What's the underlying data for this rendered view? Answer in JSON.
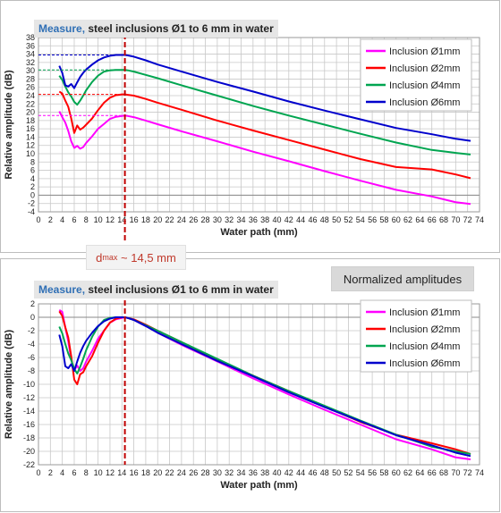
{
  "annotations": {
    "dmax_prefix": "d",
    "dmax_sub": "max",
    "dmax_suffix": "~ 14,5 mm",
    "normalized_label": "Normalized amplitudes"
  },
  "colors": {
    "series": [
      "#ff00ff",
      "#ff0000",
      "#00a550",
      "#0000cc"
    ],
    "marker": "#c00000",
    "grid": "#c8c8c8"
  },
  "chart_data": [
    {
      "type": "line",
      "title_lead": "Measure,",
      "title": "steel inclusions Ø1 to 6 mm in water",
      "xlabel": "Water path (mm)",
      "ylabel": "Relative amplitude (dB)",
      "xlim": [
        0,
        74
      ],
      "ylim": [
        -4,
        38
      ],
      "xticks": [
        0,
        2,
        4,
        6,
        8,
        10,
        12,
        14,
        16,
        18,
        20,
        22,
        24,
        26,
        28,
        30,
        32,
        34,
        36,
        38,
        40,
        42,
        44,
        46,
        48,
        50,
        52,
        54,
        56,
        58,
        60,
        62,
        64,
        66,
        68,
        70,
        72,
        74
      ],
      "yticks": [
        -4,
        -2,
        0,
        2,
        4,
        6,
        8,
        10,
        12,
        14,
        16,
        18,
        20,
        22,
        24,
        26,
        28,
        30,
        32,
        34,
        36,
        38
      ],
      "grid": true,
      "legend_position": "top-right",
      "marker_x": 14.5,
      "series": [
        {
          "name": "Inclusion Ø1mm",
          "peak": 19.2,
          "x": [
            3.5,
            4,
            4.5,
            5,
            5.5,
            6,
            6.5,
            7,
            7.5,
            8,
            9,
            10,
            11,
            12,
            13,
            14,
            14.5,
            15,
            16,
            18,
            20,
            24,
            30,
            36,
            42,
            48,
            54,
            60,
            66,
            70,
            72.5
          ],
          "y": [
            20.2,
            18.8,
            17.5,
            15.5,
            13,
            11.4,
            11.9,
            11.2,
            11.6,
            12.6,
            14.2,
            16,
            17.2,
            18.4,
            18.9,
            19.1,
            19.2,
            19.1,
            18.8,
            18,
            17.1,
            15.4,
            13,
            10.5,
            8.2,
            5.8,
            3.5,
            1.3,
            -0.3,
            -1.7,
            -2.1
          ]
        },
        {
          "name": "Inclusion Ø2mm",
          "peak": 24.3,
          "x": [
            3.5,
            4,
            4.5,
            5,
            5.5,
            6,
            6.5,
            7,
            7.5,
            8,
            9,
            10,
            11,
            12,
            13,
            14,
            14.5,
            15,
            16,
            18,
            20,
            24,
            30,
            36,
            42,
            48,
            54,
            60,
            66,
            70,
            72.5
          ],
          "y": [
            25,
            24.5,
            22.8,
            21.3,
            18.5,
            15,
            16.8,
            15.8,
            16.3,
            17,
            18.5,
            20.5,
            22.3,
            23.5,
            24.1,
            24.3,
            24.3,
            24.2,
            24,
            23.2,
            22.3,
            20.6,
            18,
            15.6,
            13.3,
            11,
            8.7,
            6.8,
            6.2,
            5,
            4.1
          ]
        },
        {
          "name": "Inclusion Ø4mm",
          "peak": 30.2,
          "x": [
            3.5,
            4,
            4.5,
            5,
            5.5,
            6,
            6.5,
            7,
            7.5,
            8,
            9,
            10,
            11,
            12,
            13,
            14,
            14.5,
            15,
            16,
            18,
            20,
            24,
            30,
            36,
            42,
            48,
            54,
            60,
            66,
            70,
            72.5
          ],
          "y": [
            28.8,
            27.8,
            26.2,
            24.8,
            23.8,
            22.5,
            21.8,
            22.8,
            24,
            25.3,
            27.3,
            28.8,
            29.8,
            30.1,
            30.2,
            30.2,
            30.2,
            30.1,
            29.8,
            29,
            28.2,
            26.5,
            24,
            21.5,
            19.2,
            17,
            14.8,
            12.7,
            10.9,
            10.2,
            9.8
          ]
        },
        {
          "name": "Inclusion Ø6mm",
          "peak": 33.8,
          "x": [
            3.5,
            4,
            4.5,
            5,
            5.5,
            6,
            6.5,
            7,
            7.5,
            8,
            9,
            10,
            11,
            12,
            13,
            14,
            14.5,
            15,
            16,
            18,
            20,
            24,
            30,
            36,
            42,
            48,
            54,
            60,
            66,
            70,
            72.5
          ],
          "y": [
            31.2,
            29.5,
            26.5,
            26.2,
            26.8,
            25.8,
            27.2,
            28.5,
            29.5,
            30.3,
            31.5,
            32.5,
            33.2,
            33.6,
            33.8,
            33.8,
            33.8,
            33.7,
            33.4,
            32.5,
            31.5,
            29.8,
            27.3,
            25,
            22.6,
            20.4,
            18.3,
            16.2,
            14.7,
            13.6,
            13.1
          ]
        }
      ]
    },
    {
      "type": "line",
      "title_lead": "Measure,",
      "title": "steel inclusions Ø1 to 6 mm in water",
      "xlabel": "Water path (mm)",
      "ylabel": "Relative amplitude (dB)",
      "xlim": [
        0,
        74
      ],
      "ylim": [
        -22,
        2
      ],
      "xticks": [
        0,
        2,
        4,
        6,
        8,
        10,
        12,
        14,
        16,
        18,
        20,
        22,
        24,
        26,
        28,
        30,
        32,
        34,
        36,
        38,
        40,
        42,
        44,
        46,
        48,
        50,
        52,
        54,
        56,
        58,
        60,
        62,
        64,
        66,
        68,
        70,
        72,
        74
      ],
      "yticks": [
        -22,
        -20,
        -18,
        -16,
        -14,
        -12,
        -10,
        -8,
        -6,
        -4,
        -2,
        0,
        2
      ],
      "grid": true,
      "legend_position": "top-right",
      "marker_x": 14.5,
      "series": [
        {
          "name": "Inclusion Ø1mm",
          "x": [
            3.5,
            4,
            4.5,
            5,
            5.5,
            6,
            6.5,
            7,
            7.5,
            8,
            9,
            10,
            11,
            12,
            13,
            14,
            14.5,
            15,
            16,
            18,
            20,
            24,
            30,
            36,
            42,
            48,
            54,
            60,
            66,
            70,
            72.5
          ],
          "y": [
            1.1,
            0.8,
            -1.5,
            -3.6,
            -6.3,
            -7.9,
            -7.2,
            -8,
            -7.6,
            -6.6,
            -5,
            -3.2,
            -2,
            -0.8,
            -0.3,
            -0.1,
            0,
            -0.1,
            -0.4,
            -1.3,
            -2.3,
            -4.1,
            -6.6,
            -9.1,
            -11.5,
            -13.8,
            -16,
            -18.2,
            -19.7,
            -20.9,
            -21.2
          ]
        },
        {
          "name": "Inclusion Ø2mm",
          "x": [
            3.5,
            4,
            4.5,
            5,
            5.5,
            6,
            6.5,
            7,
            7.5,
            8,
            9,
            10,
            11,
            12,
            13,
            14,
            14.5,
            15,
            16,
            18,
            20,
            24,
            30,
            36,
            42,
            48,
            54,
            60,
            66,
            70,
            72.5
          ],
          "y": [
            0.9,
            0.2,
            -1.5,
            -3,
            -5.8,
            -9.3,
            -10,
            -8.5,
            -8.2,
            -7.3,
            -5.8,
            -3.8,
            -2,
            -0.8,
            -0.2,
            0,
            0,
            -0.1,
            -0.3,
            -1.1,
            -2,
            -3.7,
            -6.3,
            -8.7,
            -11,
            -13.3,
            -15.6,
            -17.5,
            -18.8,
            -19.7,
            -20.4
          ]
        },
        {
          "name": "Inclusion Ø4mm",
          "x": [
            3.5,
            4,
            4.5,
            5,
            5.5,
            6,
            6.5,
            7,
            7.5,
            8,
            9,
            10,
            11,
            12,
            13,
            14,
            14.5,
            15,
            16,
            18,
            20,
            24,
            30,
            36,
            42,
            48,
            54,
            60,
            66,
            70,
            72.5
          ],
          "y": [
            -1.4,
            -2.4,
            -4,
            -5.4,
            -6.4,
            -7.7,
            -8.4,
            -7.4,
            -6.2,
            -4.9,
            -2.9,
            -1.4,
            -0.4,
            -0.1,
            0,
            0,
            0,
            -0.1,
            -0.4,
            -1.2,
            -2,
            -3.7,
            -6.2,
            -8.7,
            -11,
            -13.2,
            -15.4,
            -17.5,
            -19.3,
            -20,
            -20.4
          ]
        },
        {
          "name": "Inclusion Ø6mm",
          "x": [
            3.5,
            4,
            4.5,
            5,
            5.5,
            6,
            6.5,
            7,
            7.5,
            8,
            9,
            10,
            11,
            12,
            13,
            14,
            14.5,
            15,
            16,
            18,
            20,
            24,
            30,
            36,
            42,
            48,
            54,
            60,
            66,
            70,
            72.5
          ],
          "y": [
            -2.6,
            -4.3,
            -7.3,
            -7.6,
            -7,
            -8,
            -6.6,
            -5.3,
            -4.3,
            -3.5,
            -2.3,
            -1.3,
            -0.6,
            -0.2,
            0,
            0,
            0,
            -0.1,
            -0.4,
            -1.3,
            -2.3,
            -4,
            -6.5,
            -8.8,
            -11.2,
            -13.4,
            -15.5,
            -17.6,
            -19.1,
            -20.2,
            -20.7
          ]
        }
      ]
    }
  ]
}
